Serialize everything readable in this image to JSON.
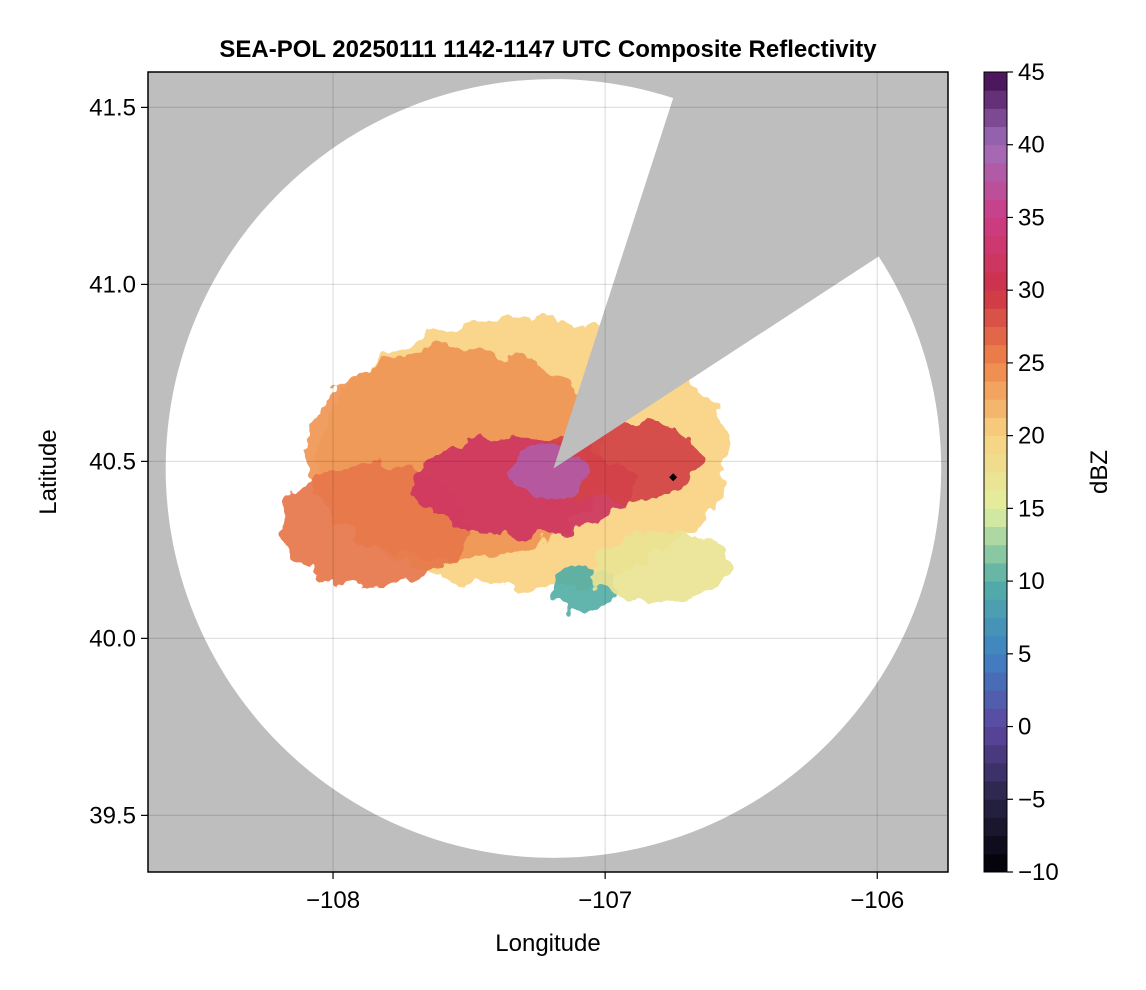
{
  "chart_data": {
    "type": "heatmap",
    "title": "SEA-POL 20250111 1142-1147 UTC Composite Reflectivity",
    "xlabel": "Longitude",
    "ylabel": "Latitude",
    "xlim": [
      -108.68,
      -105.74
    ],
    "ylim": [
      39.34,
      41.6
    ],
    "x_ticks": [
      -108,
      -107,
      -106
    ],
    "x_tick_labels": [
      "−108",
      "−107",
      "−106"
    ],
    "y_ticks": [
      39.5,
      40.0,
      40.5,
      41.0,
      41.5
    ],
    "y_tick_labels": [
      "39.5",
      "40.0",
      "40.5",
      "41.0",
      "41.5"
    ],
    "grid": true,
    "background_color": "#bebebe",
    "coverage_fill_color": "#ffffff",
    "radar_center": {
      "lon": -107.19,
      "lat": 40.48
    },
    "max_range_deg": {
      "lon": 1.425,
      "lat": 1.1
    },
    "blocked_sector_bearings_deg": [
      18,
      57
    ],
    "marker": {
      "lon": -106.75,
      "lat": 40.455,
      "color": "#000000"
    },
    "colorbar": {
      "label": "dBZ",
      "min": -10,
      "max": 45,
      "ticks": [
        -10,
        -5,
        0,
        5,
        10,
        15,
        20,
        25,
        30,
        35,
        40,
        45
      ],
      "tick_labels": [
        "−10",
        "−5",
        "0",
        "5",
        "10",
        "15",
        "20",
        "25",
        "30",
        "35",
        "40",
        "45"
      ],
      "colormap": "Spectral_r-like"
    },
    "echo_regions": [
      {
        "lon": -107.3,
        "lat": 40.52,
        "rx": 0.75,
        "ry": 0.38,
        "dbz": 20
      },
      {
        "lon": -107.55,
        "lat": 40.52,
        "rx": 0.55,
        "ry": 0.3,
        "dbz": 24
      },
      {
        "lon": -107.85,
        "lat": 40.32,
        "rx": 0.35,
        "ry": 0.17,
        "dbz": 26
      },
      {
        "lon": -107.3,
        "lat": 40.43,
        "rx": 0.4,
        "ry": 0.14,
        "dbz": 32
      },
      {
        "lon": -106.95,
        "lat": 40.5,
        "rx": 0.3,
        "ry": 0.12,
        "dbz": 29
      },
      {
        "lon": -107.2,
        "lat": 40.47,
        "rx": 0.14,
        "ry": 0.08,
        "dbz": 38
      },
      {
        "lon": -107.08,
        "lat": 40.14,
        "rx": 0.12,
        "ry": 0.06,
        "dbz": 10
      },
      {
        "lon": -106.8,
        "lat": 40.2,
        "rx": 0.25,
        "ry": 0.1,
        "dbz": 17
      }
    ]
  }
}
